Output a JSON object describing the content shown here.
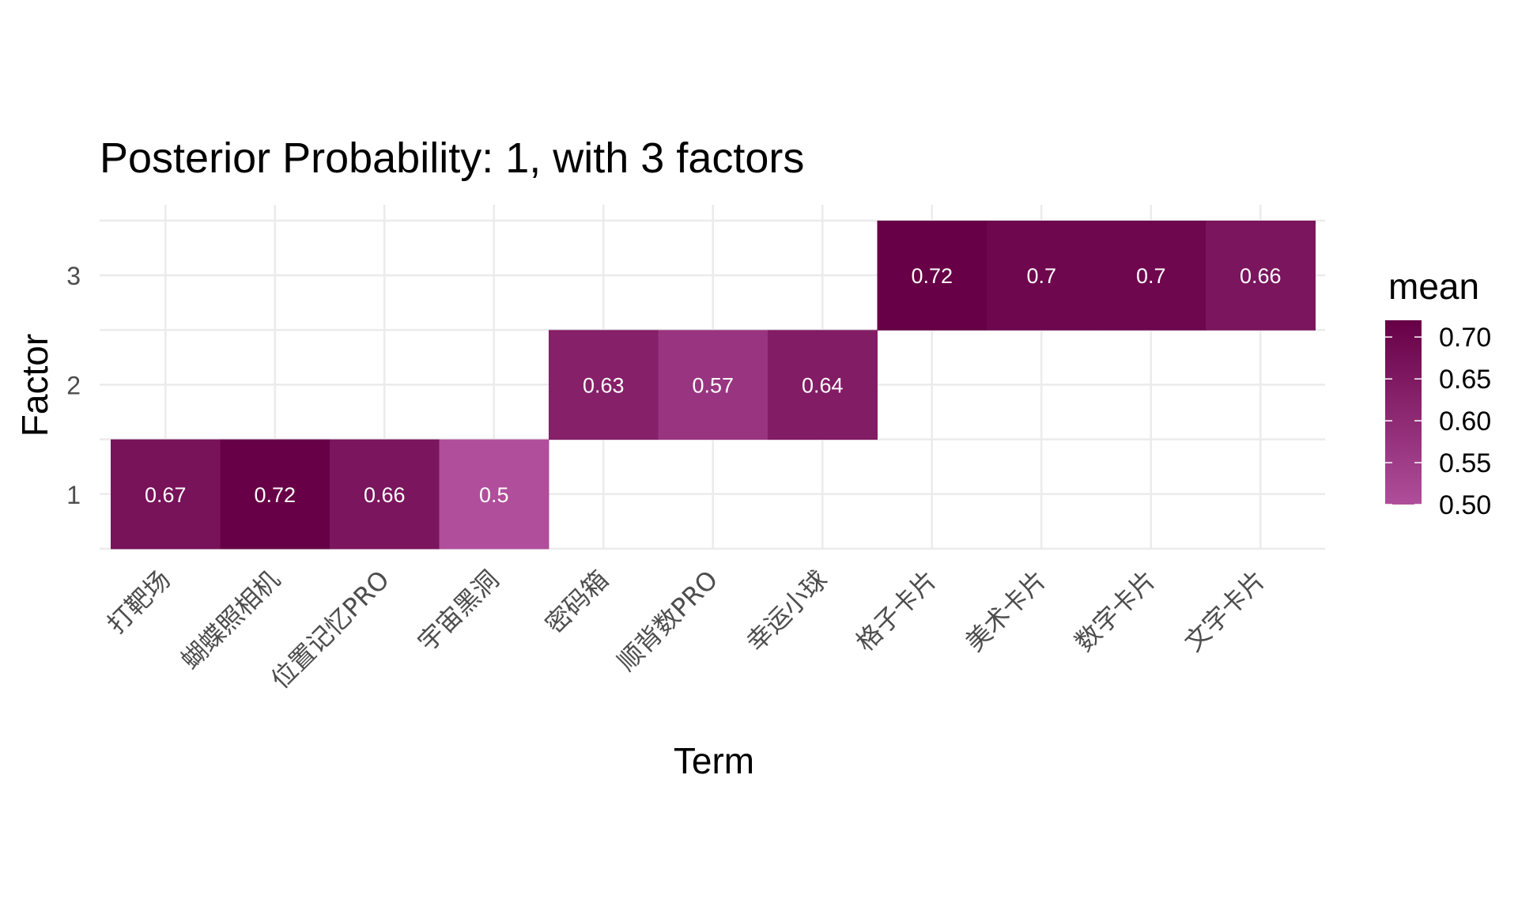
{
  "chart_data": {
    "type": "heatmap",
    "title": "Posterior Probability: 1, with 3 factors",
    "xlabel": "Term",
    "ylabel": "Factor",
    "x_categories": [
      "打靶场",
      "蝴蝶照相机",
      "位置记忆PRO",
      "宇宙黑洞",
      "密码箱",
      "顺背数PRO",
      "幸运小球",
      "格子卡片",
      "美术卡片",
      "数字卡片",
      "文字卡片"
    ],
    "y_categories": [
      "1",
      "2",
      "3"
    ],
    "cells": [
      {
        "x": "打靶场",
        "y": "1",
        "value": 0.67,
        "label": "0.67"
      },
      {
        "x": "蝴蝶照相机",
        "y": "1",
        "value": 0.72,
        "label": "0.72"
      },
      {
        "x": "位置记忆PRO",
        "y": "1",
        "value": 0.66,
        "label": "0.66"
      },
      {
        "x": "宇宙黑洞",
        "y": "1",
        "value": 0.5,
        "label": "0.5"
      },
      {
        "x": "密码箱",
        "y": "2",
        "value": 0.63,
        "label": "0.63"
      },
      {
        "x": "顺背数PRO",
        "y": "2",
        "value": 0.57,
        "label": "0.57"
      },
      {
        "x": "幸运小球",
        "y": "2",
        "value": 0.64,
        "label": "0.64"
      },
      {
        "x": "格子卡片",
        "y": "3",
        "value": 0.72,
        "label": "0.72"
      },
      {
        "x": "美术卡片",
        "y": "3",
        "value": 0.7,
        "label": "0.7"
      },
      {
        "x": "数字卡片",
        "y": "3",
        "value": 0.7,
        "label": "0.7"
      },
      {
        "x": "文字卡片",
        "y": "3",
        "value": 0.66,
        "label": "0.66"
      }
    ],
    "legend": {
      "title": "mean",
      "placement": "right",
      "range": [
        0.5,
        0.72
      ],
      "ticks": [
        0.5,
        0.55,
        0.6,
        0.65,
        0.7
      ],
      "tick_labels": [
        "0.50",
        "0.55",
        "0.60",
        "0.65",
        "0.70"
      ],
      "color_low": "#b04e9b",
      "color_high": "#670046"
    },
    "grid": true
  }
}
